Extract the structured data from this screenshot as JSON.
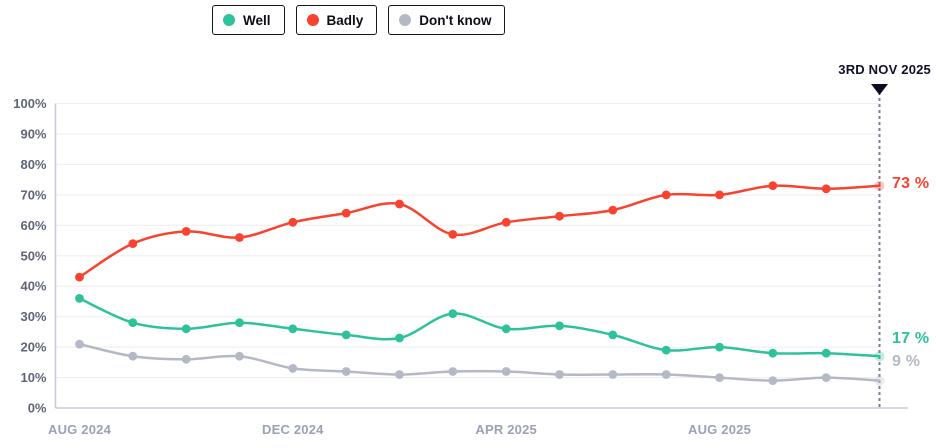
{
  "colors": {
    "background": "#ffffff",
    "grid": "#ededf2",
    "axis": "#c8cad8",
    "y_label": "#606478",
    "x_label": "#9aa2b4",
    "dashed_line": "#7b8090",
    "annotation_text": "#10102a",
    "legend_border": "#17171f"
  },
  "chart_data": {
    "type": "line",
    "title": "",
    "xlabel": "",
    "ylabel": "",
    "ylim": [
      0,
      100
    ],
    "grid": true,
    "legend_position": "top",
    "x": [
      "Aug 2024",
      "Sep 2024",
      "Oct 2024",
      "Nov 2024",
      "Dec 2024",
      "Jan 2025",
      "Feb 2025",
      "Mar 2025",
      "Apr 2025",
      "May 2025",
      "Jun 2025",
      "Jul 2025",
      "Aug 2025",
      "Sep 2025",
      "Oct 2025",
      "Nov 2025"
    ],
    "x_ticks": [
      {
        "index": 0,
        "label": "AUG 2024"
      },
      {
        "index": 4,
        "label": "DEC 2024"
      },
      {
        "index": 8,
        "label": "APR 2025"
      },
      {
        "index": 12,
        "label": "AUG 2025"
      }
    ],
    "y_tick_labels": [
      "0%",
      "10%",
      "20%",
      "30%",
      "40%",
      "50%",
      "60%",
      "70%",
      "80%",
      "90%",
      "100%"
    ],
    "annotation": {
      "label": "3RD NOV 2025",
      "x_index": 15
    },
    "series": [
      {
        "name": "Well",
        "color": "#2ec29c",
        "end_label": "17 %",
        "values": [
          36,
          28,
          26,
          28,
          26,
          24,
          23,
          31,
          26,
          27,
          24,
          19,
          20,
          18,
          18,
          17
        ]
      },
      {
        "name": "Badly",
        "color": "#f94331",
        "end_label": "73 %",
        "values": [
          43,
          54,
          58,
          56,
          61,
          64,
          67,
          57,
          61,
          63,
          65,
          70,
          70,
          73,
          72,
          73
        ]
      },
      {
        "name": "Don't know",
        "color": "#b5b9c6",
        "end_label": "9 %",
        "values": [
          21,
          17,
          16,
          17,
          13,
          12,
          11,
          12,
          12,
          11,
          11,
          11,
          10,
          9,
          10,
          9
        ]
      }
    ]
  }
}
